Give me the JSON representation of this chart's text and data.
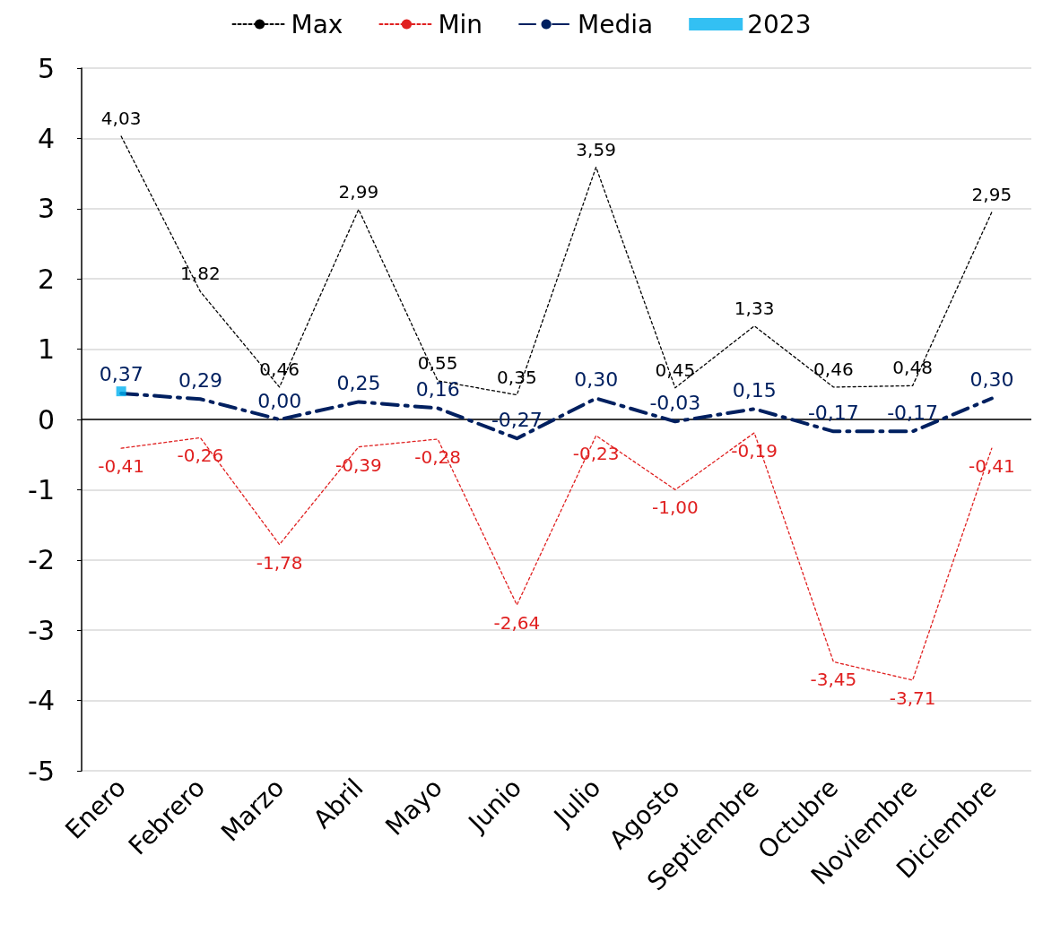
{
  "chart_data": {
    "type": "line",
    "categories": [
      "Enero",
      "Febrero",
      "Marzo",
      "Abril",
      "Mayo",
      "Junio",
      "Julio",
      "Agosto",
      "Septiembre",
      "Octubre",
      "Noviembre",
      "Diciembre"
    ],
    "series": [
      {
        "name": "Max",
        "color": "#000000",
        "line_style": "dotted",
        "marker": "none",
        "values": [
          4.03,
          1.82,
          0.46,
          2.99,
          0.55,
          0.35,
          3.59,
          0.45,
          1.33,
          0.46,
          0.48,
          2.95
        ],
        "value_labels": [
          "4,03",
          "1,82",
          "0,46",
          "2,99",
          "0,55",
          "0,35",
          "3,59",
          "0,45",
          "1,33",
          "0,46",
          "0,48",
          "2,95"
        ]
      },
      {
        "name": "Min",
        "color": "#e02020",
        "line_style": "dotted",
        "marker": "none",
        "values": [
          -0.41,
          -0.26,
          -1.78,
          -0.39,
          -0.28,
          -2.64,
          -0.23,
          -1.0,
          -0.19,
          -3.45,
          -3.71,
          -0.41
        ],
        "value_labels": [
          "-0,41",
          "-0,26",
          "-1,78",
          "-0,39",
          "-0,28",
          "-2,64",
          "-0,23",
          "-1,00",
          "-0,19",
          "-3,45",
          "-3,71",
          "-0,41"
        ]
      },
      {
        "name": "Media",
        "color": "#002060",
        "line_style": "dashed",
        "marker": "none",
        "values": [
          0.37,
          0.29,
          0.0,
          0.25,
          0.16,
          -0.27,
          0.3,
          -0.03,
          0.15,
          -0.17,
          -0.17,
          0.3
        ],
        "value_labels": [
          "0,37",
          "0,29",
          "0,00",
          "0,25",
          "0,16",
          "-0,27",
          "0,30",
          "-0,03",
          "0,15",
          "-0,17",
          "-0,17",
          "0,30"
        ]
      },
      {
        "name": "2023",
        "type": "scatter",
        "color": "#00b0f0",
        "marker": "square",
        "values": [
          0.4,
          null,
          null,
          null,
          null,
          null,
          null,
          null,
          null,
          null,
          null,
          null
        ]
      }
    ],
    "ylim": [
      -5,
      5
    ],
    "yticks": [
      -5,
      -4,
      -3,
      -2,
      -1,
      0,
      1,
      2,
      3,
      4,
      5
    ],
    "grid": "y",
    "legend": "top",
    "ref_lines": [
      {
        "axis": "y",
        "value": 0,
        "color": "#000000"
      }
    ]
  }
}
